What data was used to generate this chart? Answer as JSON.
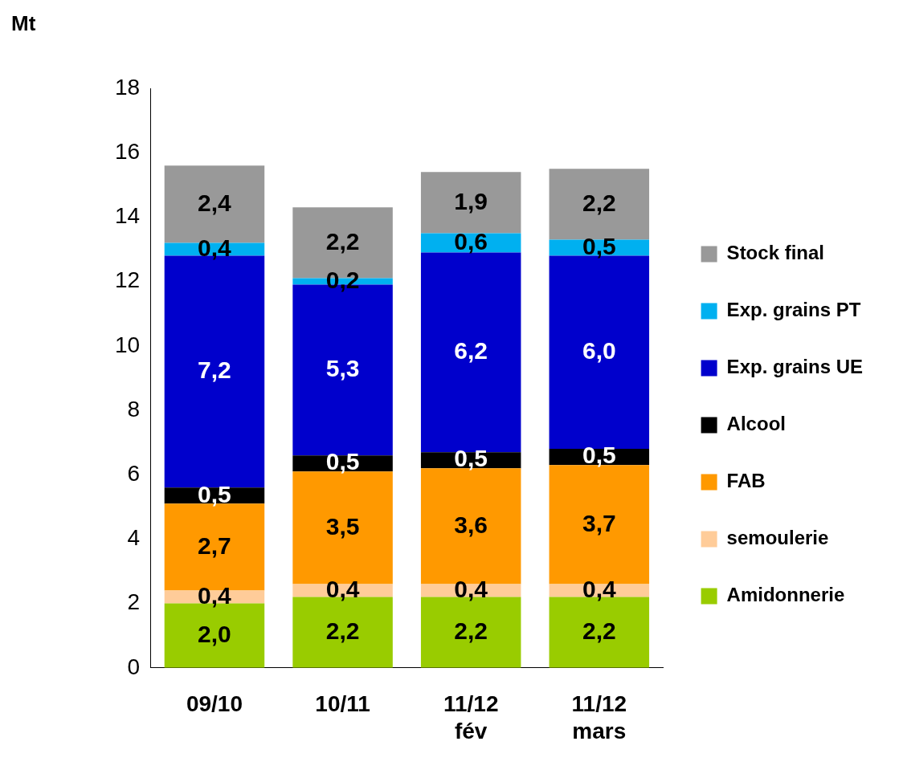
{
  "chart_data": {
    "type": "bar",
    "stacked": true,
    "ylabel": "Mt",
    "categories": [
      "09/10",
      "10/11",
      "11/12 fév",
      "11/12 mars"
    ],
    "series": [
      {
        "name": "Amidonnerie",
        "color": "#99cc00",
        "values": [
          2.0,
          2.2,
          2.2,
          2.2
        ],
        "value_labels": [
          "2,0",
          "2,2",
          "2,2",
          "2,2"
        ]
      },
      {
        "name": "semoulerie",
        "color": "#ffcc99",
        "values": [
          0.4,
          0.4,
          0.4,
          0.4
        ],
        "value_labels": [
          "0,4",
          "0,4",
          "0,4",
          "0,4"
        ]
      },
      {
        "name": "FAB",
        "color": "#ff9900",
        "values": [
          2.7,
          3.5,
          3.6,
          3.7
        ],
        "value_labels": [
          "2,7",
          "3,5",
          "3,6",
          "3,7"
        ]
      },
      {
        "name": "Alcool",
        "color": "#000000",
        "values": [
          0.5,
          0.5,
          0.5,
          0.5
        ],
        "value_labels": [
          "0,5",
          "0,5",
          "0,5",
          "0,5"
        ]
      },
      {
        "name": "Exp. grains UE",
        "color": "#0000cc",
        "values": [
          7.2,
          5.3,
          6.2,
          6.0
        ],
        "value_labels": [
          "7,2",
          "5,3",
          "6,2",
          "6,0"
        ]
      },
      {
        "name": "Exp. grains PT",
        "color": "#00b0f0",
        "values": [
          0.4,
          0.2,
          0.6,
          0.5
        ],
        "value_labels": [
          "0,4",
          "0,2",
          "0,6",
          "0,5"
        ]
      },
      {
        "name": "Stock final",
        "color": "#999999",
        "values": [
          2.4,
          2.2,
          1.9,
          2.2
        ],
        "value_labels": [
          "2,4",
          "2,2",
          "1,9",
          "2,2"
        ]
      }
    ],
    "ylim": [
      0,
      18
    ],
    "yticks": [
      0,
      2,
      4,
      6,
      8,
      10,
      12,
      14,
      16,
      18
    ],
    "grid": false,
    "legend": "right"
  }
}
